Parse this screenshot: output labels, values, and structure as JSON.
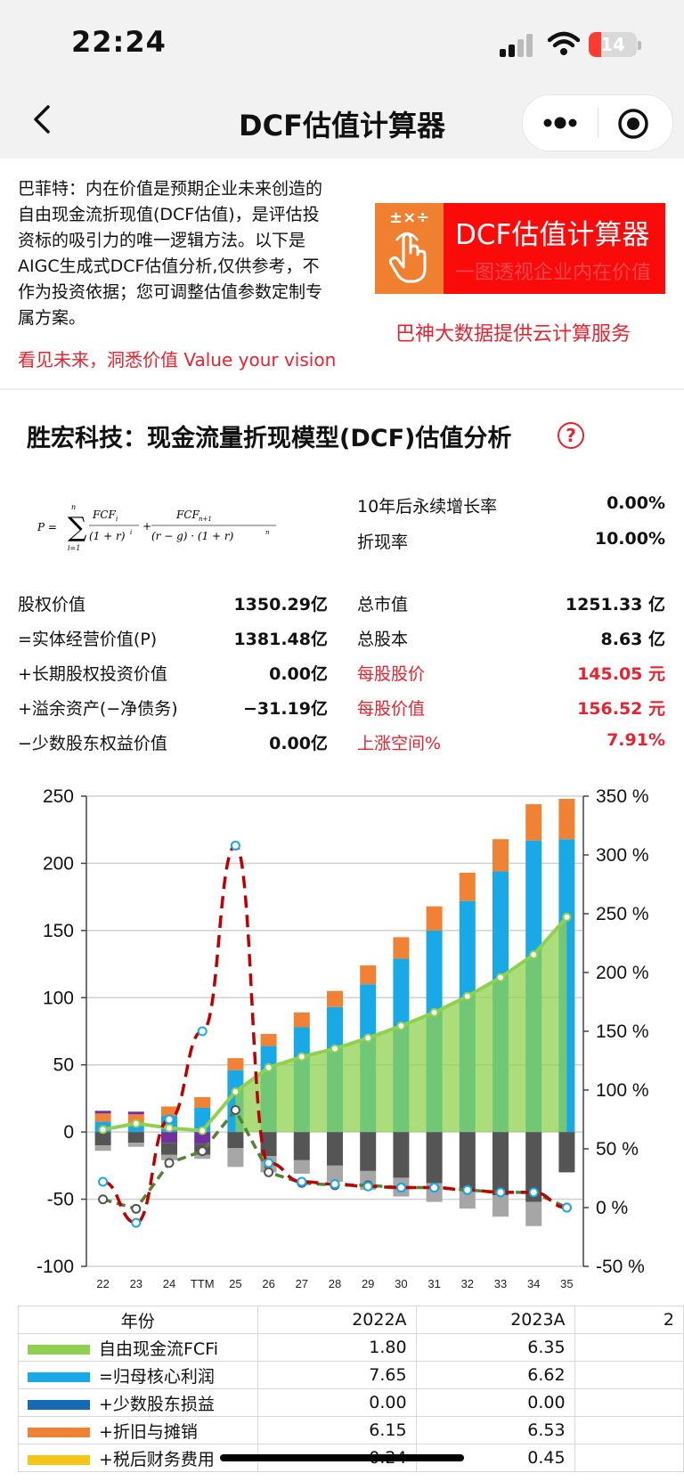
{
  "status_bar": {
    "time": "22:24",
    "battery": "14"
  },
  "nav": {
    "title": "DCF估值计算器"
  },
  "intro": {
    "lines": [
      "巴菲特：内在价值是预期企业未来创造的",
      "自由现金流折现值(DCF估值)，是评估投",
      "资标的吸引力的唯一逻辑方法。以下是",
      "AIGC生成式DCF估值分析,仅供参考，不",
      "作为投资依据；您可调整估值参数定制专",
      "属方案。"
    ],
    "slogan": "看见未来，洞悉价值 Value your vision"
  },
  "banner": {
    "icon_text": "±×÷",
    "title": "DCF估值计算器",
    "subtitle": "一图透视企业内在价值",
    "cloud_service": "巴神大数据提供云计算服务"
  },
  "analysis": {
    "title": "胜宏科技：现金流量折现模型(DCF)估值分析",
    "help": "?",
    "params": [
      {
        "label": "10年后永续增长率",
        "value": "0.00%"
      },
      {
        "label": "折现率",
        "value": "10.00%"
      }
    ],
    "left_rows": [
      {
        "label": "股权价值",
        "value": "1350.29亿"
      },
      {
        "label": "=实体经营价值(P)",
        "value": "1381.48亿"
      },
      {
        "label": "+长期股权投资价值",
        "value": "0.00亿"
      },
      {
        "label": "+溢余资产(−净债务)",
        "value": "−31.19亿"
      },
      {
        "label": "−少数股东权益价值",
        "value": "0.00亿"
      }
    ],
    "right_rows": [
      {
        "label": "总市值",
        "value": "1251.33 亿",
        "highlight": false
      },
      {
        "label": "总股本",
        "value": "8.63 亿",
        "highlight": false
      },
      {
        "label": "每股股价",
        "value": "145.05 元",
        "highlight": true
      },
      {
        "label": "每股价值",
        "value": "156.52 元",
        "highlight": true
      },
      {
        "label": "上涨空间%",
        "value": "7.91%",
        "highlight": true
      }
    ]
  },
  "chart_data": {
    "type": "bar",
    "categories": [
      "22",
      "23",
      "24",
      "TTM",
      "25",
      "26",
      "27",
      "28",
      "29",
      "30",
      "31",
      "32",
      "33",
      "34",
      "35"
    ],
    "left_axis": {
      "ticks": [
        "250",
        "200",
        "150",
        "100",
        "50",
        "0",
        "-50",
        "-100"
      ],
      "range": [
        -100,
        250
      ]
    },
    "right_axis": {
      "ticks": [
        "350 %",
        "300 %",
        "250 %",
        "200 %",
        "150 %",
        "100 %",
        "50 %",
        "0 %",
        "-50 %"
      ],
      "range": [
        -50,
        350
      ]
    },
    "grid": true,
    "series": [
      {
        "name": "自由现金流FCFi",
        "type": "area",
        "color": "#8fd14f",
        "values": [
          1.8,
          6.35,
          3,
          1,
          30,
          48,
          56,
          62,
          70,
          79,
          89,
          101,
          115,
          132,
          160
        ]
      },
      {
        "name": "=归母核心利润",
        "type": "bar",
        "color": "#19a9e6",
        "values": [
          7.65,
          6.62,
          12,
          18,
          46,
          64,
          78,
          93,
          110,
          129,
          150,
          172,
          194,
          217,
          218
        ]
      },
      {
        "name": "+折旧与摊销",
        "type": "bar",
        "color": "#f08235",
        "values": [
          6.15,
          6.53,
          7,
          8,
          9,
          9,
          11,
          12,
          14,
          16,
          18,
          21,
          24,
          27,
          30
        ]
      },
      {
        "name": "purple_negative",
        "type": "bar",
        "color": "#7030a0",
        "values": [
          2,
          2,
          -8,
          -9,
          0,
          0,
          0,
          0,
          0,
          0,
          0,
          0,
          0,
          0,
          0
        ]
      },
      {
        "name": "capex_dark",
        "type": "bar",
        "color": "#555555",
        "values": [
          -10,
          -8,
          -9,
          -8,
          -12,
          -18,
          -21,
          -25,
          -29,
          -34,
          -38,
          -43,
          -47,
          -52,
          -30
        ]
      },
      {
        "name": "wc_grey",
        "type": "bar",
        "color": "#a6a6a6",
        "values": [
          -4,
          -3,
          -4,
          -3,
          -14,
          -12,
          -10,
          -12,
          -14,
          -14,
          -14,
          -14,
          -16,
          -18,
          0
        ]
      },
      {
        "name": "growth_pct_red",
        "type": "line",
        "color": "#c00000",
        "values": [
          22,
          -13,
          75,
          150,
          308,
          38,
          22,
          20,
          18,
          17,
          17,
          15,
          13,
          13,
          0
        ]
      },
      {
        "name": "growth_pct_green",
        "type": "line",
        "color": "#538135",
        "values": [
          7,
          -1,
          38,
          48,
          83,
          30,
          21,
          19,
          19,
          17,
          17,
          15,
          13,
          13,
          0
        ]
      }
    ]
  },
  "table": {
    "header": [
      "年份",
      "2022A",
      "2023A",
      "2"
    ],
    "rows": [
      {
        "label": "自由现金流FCFi",
        "color": "#8fd14f",
        "v1": "1.80",
        "v2": "6.35"
      },
      {
        "label": "=归母核心利润",
        "color": "#19a9e6",
        "v1": "7.65",
        "v2": "6.62"
      },
      {
        "label": "+少数股东损益",
        "color": "#1669b5",
        "v1": "0.00",
        "v2": "0.00"
      },
      {
        "label": "+折旧与摊销",
        "color": "#f08235",
        "v1": "6.15",
        "v2": "6.53"
      },
      {
        "label": "+税后财务费用",
        "color": "#f5c518",
        "v1": "0.24",
        "v2": "0.45"
      }
    ]
  }
}
